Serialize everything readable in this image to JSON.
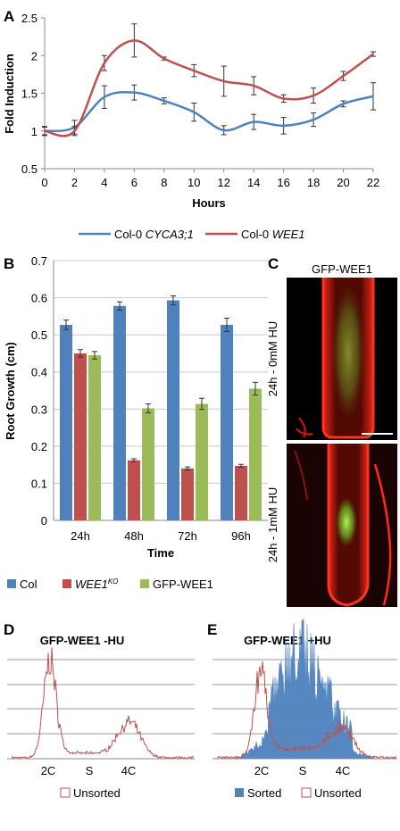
{
  "panels": {
    "A": "A",
    "B": "B",
    "C": "C",
    "D": "D",
    "E": "E"
  },
  "micrograph": {
    "title": "GFP-WEE1",
    "top_label": "24h - 0mM HU",
    "bottom_label": "24h - 1mM HU",
    "colors": {
      "background": "#000000",
      "tissue": "#e01010",
      "gfp": "#7fe02a"
    }
  },
  "chart_data": [
    {
      "id": "A",
      "type": "line",
      "title": "",
      "xlabel": "Hours",
      "ylabel": "Fold Induction",
      "x": [
        0,
        2,
        4,
        6,
        8,
        10,
        12,
        14,
        16,
        18,
        20,
        22
      ],
      "xlim": [
        0,
        22
      ],
      "ylim": [
        0.5,
        2.5
      ],
      "yticks": [
        "0.5",
        "1",
        "1.5",
        "2",
        "2.5"
      ],
      "xticks": [
        "0",
        "2",
        "4",
        "6",
        "8",
        "10",
        "12",
        "14",
        "16",
        "18",
        "20",
        "22"
      ],
      "grid": false,
      "legend_position": "bottom",
      "series": [
        {
          "name_main": "Col-0 ",
          "name_gene": "CYCA3;1",
          "color": "#4f81bd",
          "values": [
            1.0,
            1.05,
            1.45,
            1.51,
            1.4,
            1.25,
            1.01,
            1.12,
            1.07,
            1.15,
            1.36,
            1.46
          ],
          "errors": [
            0.06,
            0.09,
            0.15,
            0.1,
            0.04,
            0.12,
            0.06,
            0.1,
            0.11,
            0.09,
            0.04,
            0.18
          ]
        },
        {
          "name_main": "Col-0 ",
          "name_gene": "WEE1",
          "color": "#c0504d",
          "values": [
            1.0,
            1.0,
            1.9,
            2.2,
            1.96,
            1.8,
            1.66,
            1.6,
            1.43,
            1.47,
            1.73,
            2.02
          ],
          "errors": [
            0.05,
            0.06,
            0.1,
            0.22,
            0.02,
            0.08,
            0.2,
            0.12,
            0.05,
            0.1,
            0.06,
            0.03
          ]
        }
      ]
    },
    {
      "id": "B",
      "type": "bar",
      "title": "",
      "xlabel": "Time",
      "ylabel": "Root Growth (cm)",
      "categories": [
        "24h",
        "48h",
        "72h",
        "96h"
      ],
      "ylim": [
        0,
        0.7
      ],
      "yticks": [
        "0",
        "0.1",
        "0.2",
        "0.3",
        "0.4",
        "0.5",
        "0.6",
        "0.7"
      ],
      "grid": true,
      "legend_position": "bottom",
      "series": [
        {
          "name_main": "Col",
          "name_sup": "",
          "color": "#4f81bd",
          "values": [
            0.527,
            0.578,
            0.593,
            0.527
          ],
          "errors": [
            0.013,
            0.011,
            0.012,
            0.018
          ]
        },
        {
          "name_main": "WEE1",
          "name_sup": "KO",
          "color": "#c0504d",
          "values": [
            0.45,
            0.162,
            0.14,
            0.147
          ],
          "errors": [
            0.01,
            0.004,
            0.004,
            0.004
          ]
        },
        {
          "name_main": "GFP-WEE1",
          "name_sup": "",
          "color": "#9bbb59",
          "values": [
            0.445,
            0.302,
            0.314,
            0.355
          ],
          "errors": [
            0.01,
            0.012,
            0.015,
            0.017
          ]
        }
      ]
    },
    {
      "id": "D",
      "type": "area",
      "title": "GFP-WEE1 -HU",
      "xticks": [
        "2C",
        "S",
        "4C"
      ],
      "grid": true,
      "legend_position": "bottom",
      "series": [
        {
          "name": "Unsorted",
          "color": "#c0504d"
        }
      ]
    },
    {
      "id": "E",
      "type": "area",
      "title": "GFP-WEE1 +HU",
      "xticks": [
        "2C",
        "S",
        "4C"
      ],
      "grid": true,
      "legend_position": "bottom",
      "series": [
        {
          "name": "Sorted",
          "color": "#4f81bd"
        },
        {
          "name": "Unsorted",
          "color": "#c0504d"
        }
      ]
    }
  ]
}
